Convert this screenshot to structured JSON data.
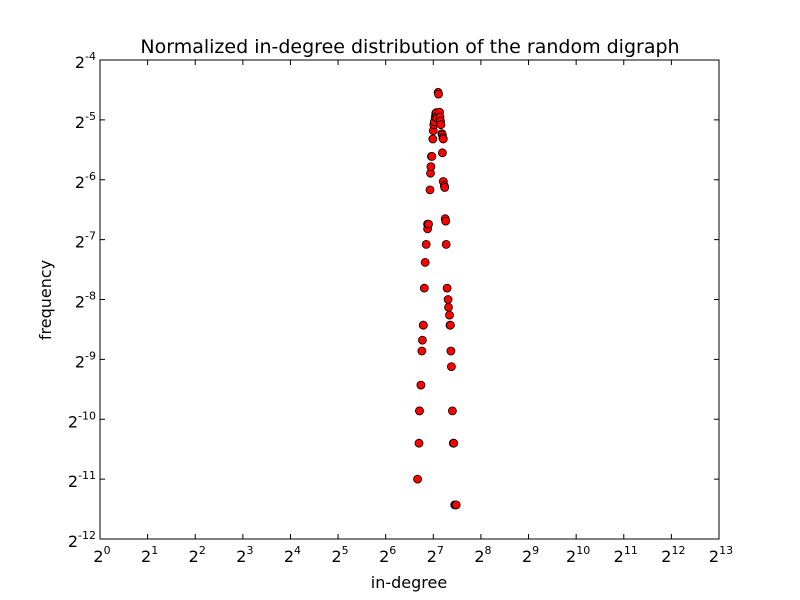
{
  "chart_data": {
    "type": "scatter",
    "title": "Normalized in-degree distribution of the random digraph",
    "xlabel": "in-degree",
    "ylabel": "frequency",
    "x_scale": "log2",
    "y_scale": "log2",
    "xlim_exponent": [
      0,
      13
    ],
    "ylim_exponent": [
      -12,
      -4
    ],
    "x_ticks": [
      {
        "base": "2",
        "exp": "0"
      },
      {
        "base": "2",
        "exp": "1"
      },
      {
        "base": "2",
        "exp": "2"
      },
      {
        "base": "2",
        "exp": "3"
      },
      {
        "base": "2",
        "exp": "4"
      },
      {
        "base": "2",
        "exp": "5"
      },
      {
        "base": "2",
        "exp": "6"
      },
      {
        "base": "2",
        "exp": "7"
      },
      {
        "base": "2",
        "exp": "8"
      },
      {
        "base": "2",
        "exp": "9"
      },
      {
        "base": "2",
        "exp": "10"
      },
      {
        "base": "2",
        "exp": "11"
      },
      {
        "base": "2",
        "exp": "12"
      },
      {
        "base": "2",
        "exp": "13"
      }
    ],
    "y_ticks": [
      {
        "base": "2",
        "exp": "-4"
      },
      {
        "base": "2",
        "exp": "-5"
      },
      {
        "base": "2",
        "exp": "-6"
      },
      {
        "base": "2",
        "exp": "-7"
      },
      {
        "base": "2",
        "exp": "-8"
      },
      {
        "base": "2",
        "exp": "-9"
      },
      {
        "base": "2",
        "exp": "-10"
      },
      {
        "base": "2",
        "exp": "-11"
      },
      {
        "base": "2",
        "exp": "-12"
      }
    ],
    "marker_color": "#ff0000",
    "marker_edge_color": "#000000",
    "series": [
      {
        "points_log2": [
          [
            6.67,
            -11.0
          ],
          [
            6.7,
            -10.4
          ],
          [
            6.71,
            -9.86
          ],
          [
            6.71,
            -9.86
          ],
          [
            6.74,
            -9.43
          ],
          [
            6.76,
            -8.86
          ],
          [
            6.77,
            -8.68
          ],
          [
            6.79,
            -8.43
          ],
          [
            6.79,
            -8.43
          ],
          [
            6.81,
            -7.81
          ],
          [
            6.83,
            -7.38
          ],
          [
            6.85,
            -7.08
          ],
          [
            6.88,
            -6.82
          ],
          [
            6.88,
            -6.74
          ],
          [
            6.9,
            -6.74
          ],
          [
            6.93,
            -6.17
          ],
          [
            6.94,
            -5.89
          ],
          [
            6.95,
            -5.78
          ],
          [
            6.96,
            -5.61
          ],
          [
            6.97,
            -5.61
          ],
          [
            6.99,
            -5.32
          ],
          [
            7.0,
            -5.18
          ],
          [
            7.01,
            -5.08
          ],
          [
            7.02,
            -5.03
          ],
          [
            7.04,
            -4.95
          ],
          [
            7.05,
            -4.89
          ],
          [
            7.06,
            -4.88
          ],
          [
            7.07,
            -4.94
          ],
          [
            7.08,
            -4.97
          ],
          [
            7.1,
            -4.54
          ],
          [
            7.11,
            -4.57
          ],
          [
            7.13,
            -4.87
          ],
          [
            7.14,
            -4.95
          ],
          [
            7.15,
            -5.02
          ],
          [
            7.16,
            -5.08
          ],
          [
            7.18,
            -5.23
          ],
          [
            7.19,
            -5.25
          ],
          [
            7.2,
            -5.3
          ],
          [
            7.21,
            -5.32
          ],
          [
            7.19,
            -5.55
          ],
          [
            7.21,
            -6.03
          ],
          [
            7.23,
            -6.1
          ],
          [
            7.24,
            -6.13
          ],
          [
            7.25,
            -6.65
          ],
          [
            7.26,
            -6.69
          ],
          [
            7.27,
            -7.08
          ],
          [
            7.29,
            -7.81
          ],
          [
            7.31,
            -8.0
          ],
          [
            7.32,
            -8.13
          ],
          [
            7.34,
            -8.26
          ],
          [
            7.35,
            -8.43
          ],
          [
            7.36,
            -8.43
          ],
          [
            7.37,
            -8.86
          ],
          [
            7.38,
            -9.12
          ],
          [
            7.4,
            -9.86
          ],
          [
            7.42,
            -10.4
          ],
          [
            7.43,
            -10.4
          ],
          [
            7.45,
            -11.43
          ],
          [
            7.47,
            -11.43
          ],
          [
            7.48,
            -11.43
          ]
        ]
      }
    ]
  }
}
